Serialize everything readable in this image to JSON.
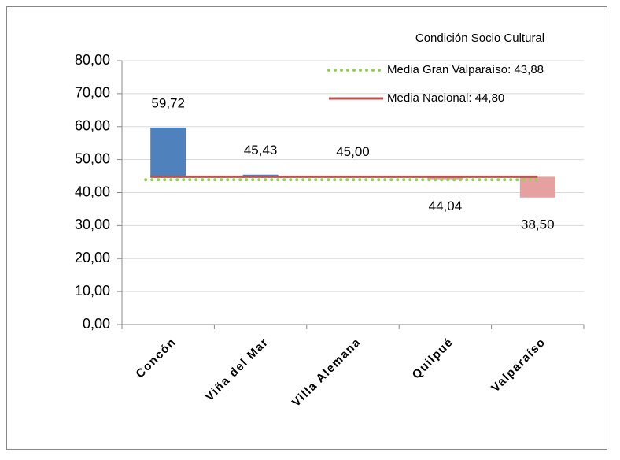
{
  "chart_data": {
    "type": "bar",
    "title": "Condición Socio Cultural",
    "categories": [
      "Concón",
      "Viña del Mar",
      "Villa Alemana",
      "Quilpué",
      "Valparaíso"
    ],
    "values": [
      59.72,
      45.43,
      45.0,
      44.04,
      38.5
    ],
    "value_labels": [
      "59,72",
      "45,43",
      "45,00",
      "44,04",
      "38,50"
    ],
    "colors": [
      "#4f81bd",
      "#4f81bd",
      "#4f81bd",
      "#e6a0a0",
      "#e6a0a0"
    ],
    "reference_lines": [
      {
        "name": "Media Gran Valparaíso: 43,88",
        "value": 43.88,
        "color": "#92d050",
        "style": "dotted"
      },
      {
        "name": "Media Nacional: 44,80",
        "value": 44.8,
        "color": "#c0504d",
        "style": "solid",
        "baseline": true
      }
    ],
    "ylim": [
      0,
      80
    ],
    "yticks": [
      {
        "value": 0,
        "label": "0,00"
      },
      {
        "value": 10,
        "label": "10,00"
      },
      {
        "value": 20,
        "label": "20,00"
      },
      {
        "value": 30,
        "label": "30,00"
      },
      {
        "value": 40,
        "label": "40,00"
      },
      {
        "value": 50,
        "label": "50,00"
      },
      {
        "value": 60,
        "label": "60,00"
      },
      {
        "value": 70,
        "label": "70,00"
      },
      {
        "value": 80,
        "label": "80,00"
      }
    ],
    "grid": true
  }
}
